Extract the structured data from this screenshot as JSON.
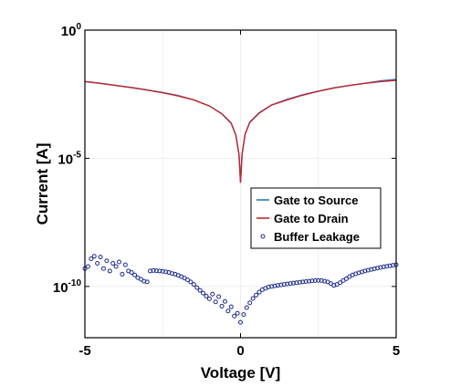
{
  "chart_data": {
    "type": "line",
    "xlabel": "Voltage [V]",
    "ylabel": "Current [A]",
    "xlim": [
      -5,
      5
    ],
    "ylim": [
      1e-12,
      1
    ],
    "yscale": "log",
    "x_ticks": [
      "-5",
      "0",
      "5"
    ],
    "y_ticks": [
      {
        "value": 1,
        "base": "10",
        "exp": "0"
      },
      {
        "value": 1e-05,
        "base": "10",
        "exp": "-5"
      },
      {
        "value": 1e-10,
        "base": "10",
        "exp": "-10"
      }
    ],
    "grid": true,
    "legend_position": "right",
    "series": [
      {
        "name": "Gate to Source",
        "style": "line",
        "color": "#2b7bb9",
        "x": [
          -5,
          -4.5,
          -4,
          -3.5,
          -3,
          -2.5,
          -2,
          -1.5,
          -1,
          -0.6,
          -0.3,
          -0.15,
          -0.05,
          0,
          0.05,
          0.15,
          0.3,
          0.6,
          1,
          1.5,
          2,
          2.5,
          3,
          3.5,
          4,
          4.5,
          5
        ],
        "y": [
          0.01,
          0.0085,
          0.007,
          0.0058,
          0.0047,
          0.0037,
          0.0028,
          0.0019,
          0.0011,
          0.00055,
          0.00024,
          8e-05,
          1.5e-05,
          1.2e-06,
          1.5e-05,
          9e-05,
          0.00026,
          0.0006,
          0.0012,
          0.002,
          0.003,
          0.0042,
          0.0056,
          0.007,
          0.0085,
          0.0105,
          0.012
        ]
      },
      {
        "name": "Gate to Drain",
        "style": "line",
        "color": "#c1272d",
        "x": [
          -5,
          -4.5,
          -4,
          -3.5,
          -3,
          -2.5,
          -2,
          -1.5,
          -1,
          -0.6,
          -0.3,
          -0.15,
          -0.05,
          0,
          0.05,
          0.15,
          0.3,
          0.6,
          1,
          1.5,
          2,
          2.5,
          3,
          3.5,
          4,
          4.5,
          5
        ],
        "y": [
          0.0098,
          0.0083,
          0.0069,
          0.0057,
          0.0046,
          0.0036,
          0.0027,
          0.0019,
          0.0011,
          0.00054,
          0.00023,
          8e-05,
          1.4e-05,
          1.1e-06,
          1.4e-05,
          9e-05,
          0.00025,
          0.00058,
          0.0012,
          0.0019,
          0.0029,
          0.0041,
          0.0055,
          0.0069,
          0.0084,
          0.0098,
          0.011
        ]
      },
      {
        "name": "Buffer Leakage",
        "style": "marker",
        "color": "#1c2a8c",
        "x": [
          -5,
          -4.9,
          -4.8,
          -4.7,
          -4.6,
          -4.5,
          -4.4,
          -4.3,
          -4.2,
          -4.1,
          -4.0,
          -3.9,
          -3.8,
          -3.7,
          -3.6,
          -3.5,
          -3.4,
          -3.3,
          -3.2,
          -3.1,
          -3.0,
          -2.9,
          -2.8,
          -2.7,
          -2.6,
          -2.5,
          -2.4,
          -2.3,
          -2.2,
          -2.1,
          -2.0,
          -1.9,
          -1.8,
          -1.7,
          -1.6,
          -1.5,
          -1.4,
          -1.3,
          -1.2,
          -1.1,
          -1.0,
          -0.9,
          -0.8,
          -0.7,
          -0.6,
          -0.5,
          -0.4,
          -0.3,
          -0.2,
          -0.1,
          0.0,
          0.1,
          0.2,
          0.3,
          0.4,
          0.5,
          0.6,
          0.7,
          0.8,
          0.9,
          1.0,
          1.1,
          1.2,
          1.3,
          1.4,
          1.5,
          1.6,
          1.7,
          1.8,
          1.9,
          2.0,
          2.1,
          2.2,
          2.3,
          2.4,
          2.5,
          2.6,
          2.7,
          2.8,
          2.9,
          3.0,
          3.1,
          3.2,
          3.3,
          3.4,
          3.5,
          3.6,
          3.7,
          3.8,
          3.9,
          4.0,
          4.1,
          4.2,
          4.3,
          4.4,
          4.5,
          4.6,
          4.7,
          4.8,
          4.9,
          5.0
        ],
        "y": [
          5e-10,
          6e-10,
          1.2e-09,
          1.5e-09,
          8e-10,
          1.4e-09,
          5e-10,
          1e-09,
          4e-10,
          8e-10,
          6e-10,
          9e-10,
          3e-10,
          7e-10,
          4e-10,
          3.5e-10,
          2.8e-10,
          2.2e-10,
          1.9e-10,
          1.6e-10,
          1.5e-10,
          4e-10,
          4.2e-10,
          4.1e-10,
          4e-10,
          3.9e-10,
          3.7e-10,
          3.5e-10,
          3.2e-10,
          3e-10,
          2.7e-10,
          2.4e-10,
          2.1e-10,
          1.8e-10,
          1.5e-10,
          1.2e-10,
          9e-11,
          7e-11,
          5.5e-11,
          4.2e-11,
          3.3e-11,
          5e-11,
          2.5e-11,
          4e-11,
          1.7e-11,
          2.6e-11,
          1.1e-11,
          1.6e-11,
          7e-12,
          9e-12,
          4e-12,
          8e-12,
          1.5e-11,
          2.3e-11,
          3.4e-11,
          4.6e-11,
          6e-11,
          7.5e-11,
          8.5e-11,
          9.5e-11,
          1e-10,
          1.05e-10,
          1.1e-10,
          1.15e-10,
          1.2e-10,
          1.25e-10,
          1.3e-10,
          1.35e-10,
          1.4e-10,
          1.45e-10,
          1.5e-10,
          1.55e-10,
          1.6e-10,
          1.65e-10,
          1.7e-10,
          1.72e-10,
          1.7e-10,
          1.6e-10,
          1.5e-10,
          1.3e-10,
          1.1e-10,
          1.2e-10,
          1.4e-10,
          1.7e-10,
          2e-10,
          2.4e-10,
          2.8e-10,
          3.1e-10,
          3.4e-10,
          3.7e-10,
          4e-10,
          4.3e-10,
          4.6e-10,
          4.9e-10,
          5.2e-10,
          5.5e-10,
          5.8e-10,
          6.1e-10,
          6.4e-10,
          6.7e-10,
          7e-10
        ]
      }
    ]
  }
}
